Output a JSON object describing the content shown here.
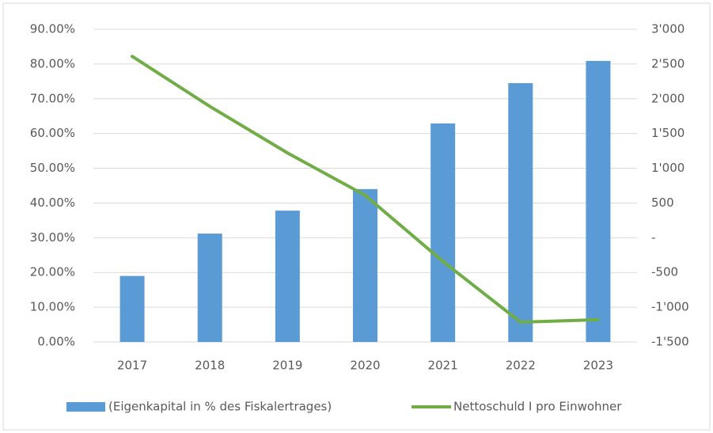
{
  "chart_data": {
    "type": "bar_line",
    "categories": [
      "2017",
      "2018",
      "2019",
      "2020",
      "2021",
      "2022",
      "2023"
    ],
    "series": [
      {
        "name": "(Eigenkapital in % des Fiskalertrages)",
        "color": "#5b9bd5",
        "type": "bar",
        "axis": "y",
        "values": [
          19.0,
          31.2,
          37.8,
          44.0,
          62.9,
          74.5,
          80.9
        ]
      },
      {
        "name": "Nettoschuld I pro Einwohner",
        "color": "#70ad47",
        "type": "line",
        "axis": "y2",
        "values": [
          2610,
          1890,
          1220,
          610,
          -340,
          -1215,
          -1180
        ]
      }
    ],
    "ylim": [
      0,
      90
    ],
    "yticks": [
      {
        "value": 0,
        "label": "0.00%"
      },
      {
        "value": 10,
        "label": "10.00%"
      },
      {
        "value": 20,
        "label": "20.00%"
      },
      {
        "value": 30,
        "label": "30.00%"
      },
      {
        "value": 40,
        "label": "40.00%"
      },
      {
        "value": 50,
        "label": "50.00%"
      },
      {
        "value": 60,
        "label": "60.00%"
      },
      {
        "value": 70,
        "label": "70.00%"
      },
      {
        "value": 80,
        "label": "80.00%"
      },
      {
        "value": 90,
        "label": "90.00%"
      }
    ],
    "y2lim": [
      -1500,
      3000
    ],
    "y2ticks": [
      {
        "value": -1500,
        "label": "-1'500"
      },
      {
        "value": -1000,
        "label": "-1'000"
      },
      -500,
      {
        "value": 0,
        "label": "-"
      },
      500,
      {
        "value": 1000,
        "label": "1'000"
      },
      {
        "value": 1500,
        "label": "1'500"
      },
      {
        "value": 2000,
        "label": "2'000"
      },
      {
        "value": 2500,
        "label": "2'500"
      },
      {
        "value": 3000,
        "label": "3'000"
      }
    ],
    "grid": true,
    "legend": "bottom"
  }
}
